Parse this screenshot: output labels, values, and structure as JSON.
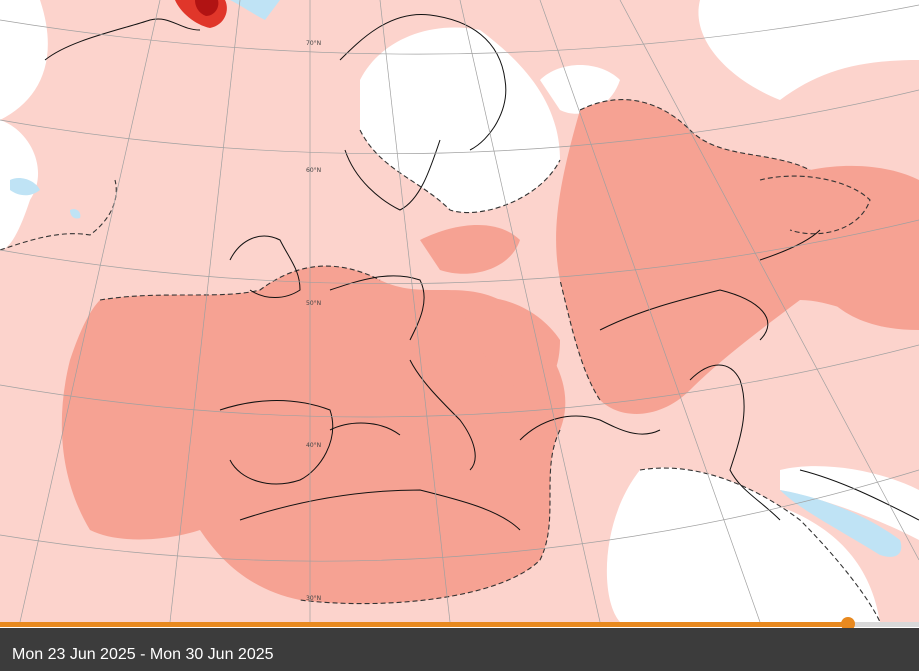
{
  "map": {
    "colors": {
      "background": "#ffffff",
      "anomaly_light": "#fcd3cc",
      "anomaly_medium": "#f6a293",
      "anomaly_strong": "#e0362a",
      "anomaly_extreme": "#b11313",
      "anomaly_negative": "#bfe3f5",
      "coastline": "#111111",
      "graticule": "#a0a0a0",
      "contour": "#333333"
    },
    "latitude_labels": [
      "70°N",
      "60°N",
      "50°N",
      "40°N",
      "30°N"
    ],
    "contour_style": "dashed"
  },
  "timeline": {
    "progress": 0.923,
    "track_color": "#d9d9d9",
    "fill_color": "#e8891f"
  },
  "footer": {
    "date_range": "Mon 23 Jun 2025 - Mon 30 Jun 2025"
  }
}
